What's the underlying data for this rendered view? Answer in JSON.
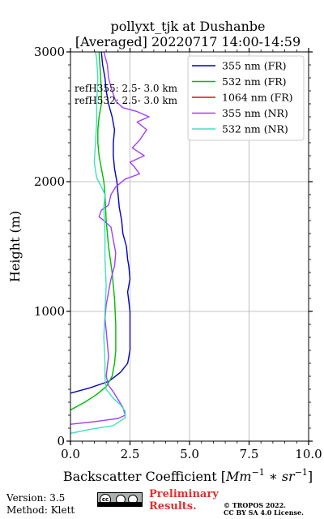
{
  "chart_data": {
    "type": "line",
    "title": "pollyxt_tjk at Dushanbe",
    "subtitle": "[Averaged] 20220717 14:00-14:59",
    "xlabel": "Backscatter Coefficient [",
    "xlabel_math": "Mm",
    "xlabel_sup1": "−1",
    "xlabel_mid": " ∗ ",
    "xlabel_math2": "sr",
    "xlabel_sup2": "−1",
    "xlabel_end": "]",
    "ylabel": "Height (m)",
    "xlim": [
      0,
      10
    ],
    "ylim": [
      0,
      3000
    ],
    "xticks": [
      0,
      2.5,
      5,
      7.5,
      10
    ],
    "xtick_labels": [
      "0.0",
      "2.5",
      "5.0",
      "7.5",
      "10.0"
    ],
    "yticks": [
      0,
      1000,
      2000,
      3000
    ],
    "ytick_labels": [
      "0",
      "1000",
      "2000",
      "3000"
    ],
    "grid": true,
    "legend_position": "top-right",
    "annotations": [
      "refH355:  2.5- 3.0 km",
      "refH532:  2.5- 3.0 km"
    ],
    "series": [
      {
        "name": "355 nm (FR)",
        "color": "#0000cc",
        "points": [
          [
            0,
            370
          ],
          [
            0.8,
            410
          ],
          [
            1.6,
            460
          ],
          [
            2.1,
            530
          ],
          [
            2.4,
            600
          ],
          [
            2.5,
            700
          ],
          [
            2.5,
            850
          ],
          [
            2.5,
            1000
          ],
          [
            2.4,
            1150
          ],
          [
            2.5,
            1250
          ],
          [
            2.45,
            1350
          ],
          [
            2.4,
            1400
          ],
          [
            2.35,
            1500
          ],
          [
            2.2,
            1600
          ],
          [
            2.15,
            1700
          ],
          [
            2.05,
            1800
          ],
          [
            2.0,
            1900
          ],
          [
            1.95,
            2000
          ],
          [
            1.85,
            2100
          ],
          [
            1.8,
            2200
          ],
          [
            1.8,
            2300
          ],
          [
            1.85,
            2400
          ],
          [
            1.75,
            2500
          ],
          [
            1.6,
            2600
          ],
          [
            1.5,
            2700
          ],
          [
            1.45,
            2800
          ],
          [
            1.35,
            2900
          ],
          [
            1.3,
            3000
          ]
        ]
      },
      {
        "name": "532 nm (FR)",
        "color": "#00bb00",
        "points": [
          [
            0,
            240
          ],
          [
            0.6,
            300
          ],
          [
            1.1,
            360
          ],
          [
            1.5,
            420
          ],
          [
            1.75,
            500
          ],
          [
            1.85,
            600
          ],
          [
            1.9,
            700
          ],
          [
            1.9,
            900
          ],
          [
            1.85,
            1100
          ],
          [
            1.75,
            1300
          ],
          [
            1.6,
            1500
          ],
          [
            1.5,
            1700
          ],
          [
            1.45,
            1900
          ],
          [
            1.4,
            2000
          ],
          [
            1.3,
            2100
          ],
          [
            1.2,
            2200
          ],
          [
            1.15,
            2300
          ],
          [
            1.15,
            2400
          ],
          [
            1.2,
            2500
          ],
          [
            1.3,
            2600
          ],
          [
            1.3,
            2700
          ],
          [
            1.25,
            2850
          ],
          [
            1.2,
            3000
          ]
        ]
      },
      {
        "name": "1064 nm (FR)",
        "color": "#dd1111",
        "points": []
      },
      {
        "name": "355 nm (NR)",
        "color": "#a040ff",
        "points": [
          [
            0,
            130
          ],
          [
            1.0,
            150
          ],
          [
            2.0,
            175
          ],
          [
            2.3,
            200
          ],
          [
            2.2,
            260
          ],
          [
            2.0,
            320
          ],
          [
            1.8,
            380
          ],
          [
            1.6,
            430
          ],
          [
            1.5,
            500
          ],
          [
            1.55,
            580
          ],
          [
            1.6,
            650
          ],
          [
            1.55,
            750
          ],
          [
            1.5,
            850
          ],
          [
            1.45,
            950
          ],
          [
            1.5,
            1050
          ],
          [
            1.6,
            1150
          ],
          [
            1.7,
            1250
          ],
          [
            1.85,
            1350
          ],
          [
            1.9,
            1450
          ],
          [
            1.8,
            1550
          ],
          [
            1.7,
            1650
          ],
          [
            1.4,
            1700
          ],
          [
            1.2,
            1730
          ],
          [
            1.3,
            1780
          ],
          [
            1.6,
            1820
          ],
          [
            1.7,
            1900
          ],
          [
            1.9,
            1960
          ],
          [
            2.3,
            2020
          ],
          [
            2.9,
            2060
          ],
          [
            2.7,
            2110
          ],
          [
            2.5,
            2150
          ],
          [
            3.1,
            2200
          ],
          [
            2.6,
            2260
          ],
          [
            2.9,
            2320
          ],
          [
            3.2,
            2400
          ],
          [
            2.8,
            2460
          ],
          [
            3.3,
            2500
          ],
          [
            2.8,
            2540
          ],
          [
            2.2,
            2570
          ],
          [
            1.9,
            2620
          ],
          [
            1.75,
            2700
          ],
          [
            1.6,
            2800
          ],
          [
            1.55,
            2900
          ],
          [
            1.4,
            3000
          ]
        ]
      },
      {
        "name": "532 nm (NR)",
        "color": "#40e0c0",
        "points": [
          [
            0,
            60
          ],
          [
            0.8,
            90
          ],
          [
            1.8,
            120
          ],
          [
            2.3,
            180
          ],
          [
            2.3,
            230
          ],
          [
            2.1,
            280
          ],
          [
            1.8,
            330
          ],
          [
            1.5,
            400
          ],
          [
            1.45,
            480
          ],
          [
            1.45,
            600
          ],
          [
            1.4,
            800
          ],
          [
            1.45,
            1000
          ],
          [
            1.5,
            1200
          ],
          [
            1.45,
            1400
          ],
          [
            1.45,
            1600
          ],
          [
            1.4,
            1800
          ],
          [
            1.45,
            1900
          ],
          [
            1.3,
            1960
          ],
          [
            1.1,
            2030
          ],
          [
            1.0,
            2150
          ],
          [
            1.05,
            2300
          ],
          [
            1.1,
            2450
          ],
          [
            1.1,
            2600
          ],
          [
            1.15,
            2800
          ],
          [
            1.1,
            2950
          ],
          [
            1.05,
            3000
          ]
        ]
      }
    ]
  },
  "footer": {
    "version": "Version: 3.5",
    "method": "Method: Klett",
    "preliminary_line1": "Preliminary",
    "preliminary_line2": "Results.",
    "copyright_line1": "© TROPOS 2022.",
    "copyright_line2": "CC BY SA 4.0 License.",
    "license_badge": "cc-by-sa-icon"
  }
}
